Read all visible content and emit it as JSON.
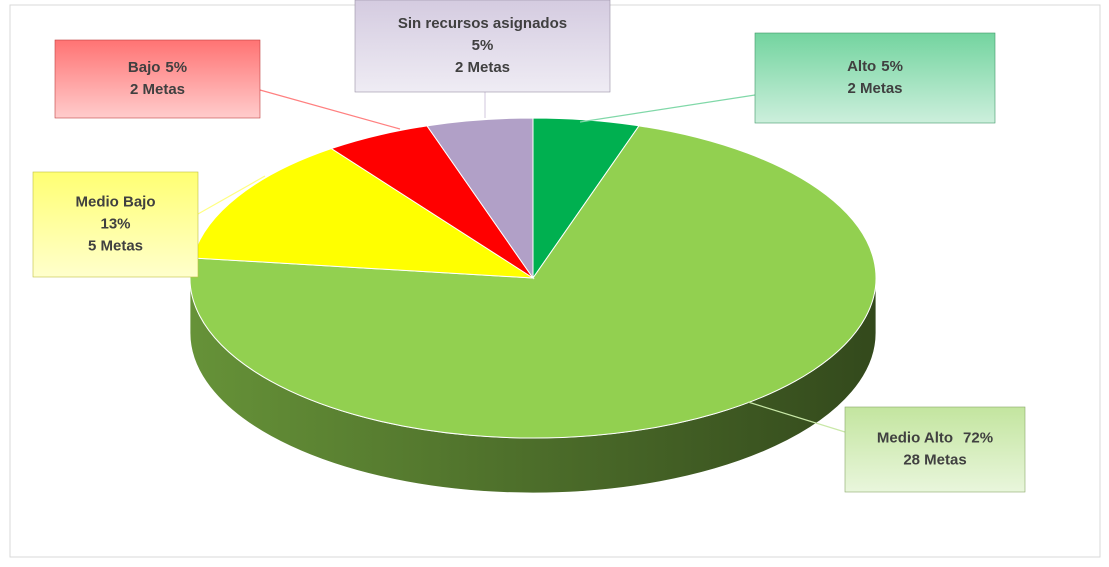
{
  "chart_data": {
    "type": "pie3d",
    "categories": [
      "Alto",
      "Medio Alto",
      "Medio Bajo",
      "Bajo",
      "Sin recursos asignados"
    ],
    "values": [
      5,
      72,
      13,
      5,
      5
    ],
    "value_labels": [
      "5%",
      "72%",
      "13%",
      "5%",
      "5%"
    ],
    "counts": [
      2,
      28,
      5,
      2,
      2
    ],
    "count_labels": [
      "2 Metas",
      "28 Metas",
      "5 Metas",
      "2 Metas",
      "2 Metas"
    ],
    "colors": [
      "#00b050",
      "#92d050",
      "#ffff00",
      "#ff0000",
      "#b1a0c7"
    ]
  }
}
